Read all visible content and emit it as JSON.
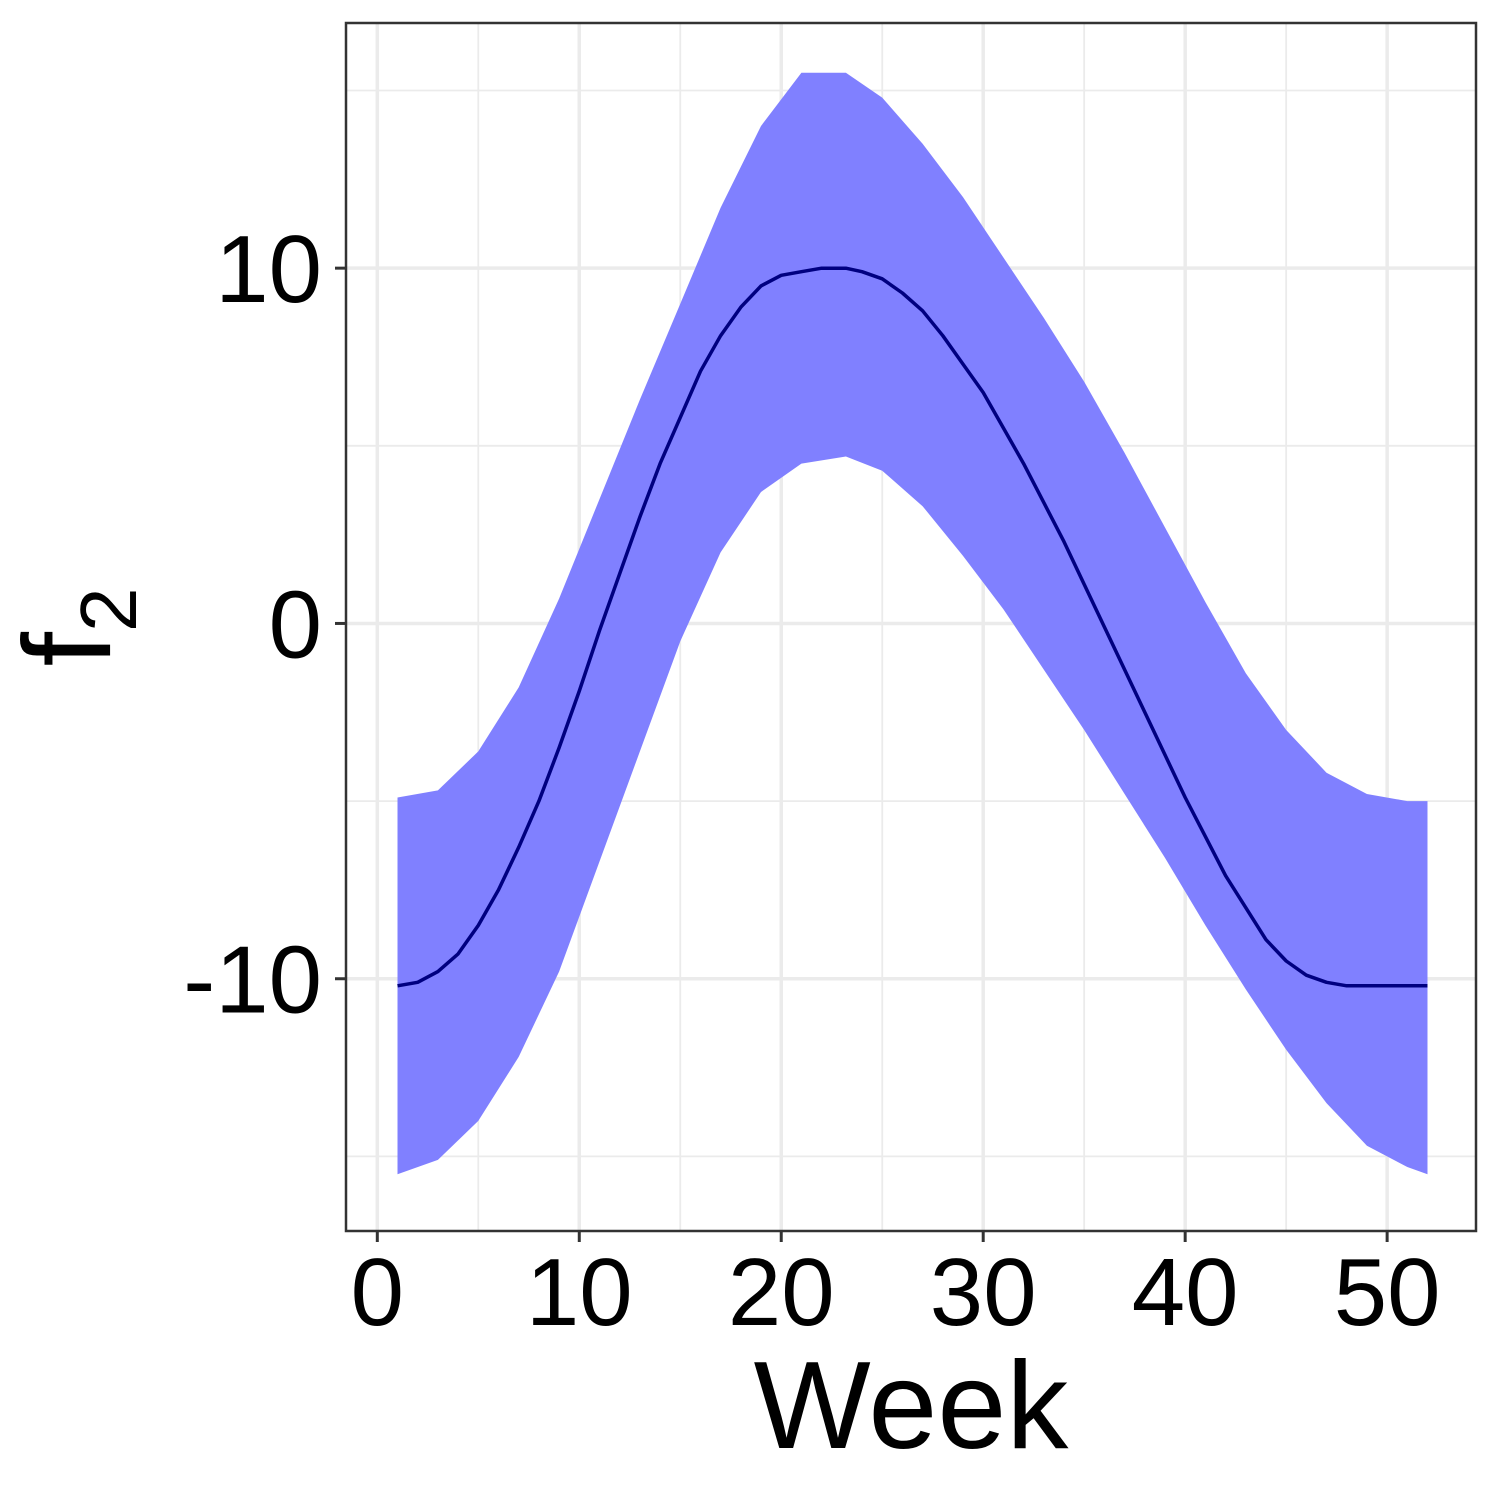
{
  "chart_data": {
    "type": "line",
    "x_ticks": [
      0,
      10,
      20,
      30,
      40,
      50
    ],
    "x_minor_ticks": [
      5,
      15,
      25,
      35,
      45
    ],
    "y_ticks": [
      -10,
      0,
      10
    ],
    "y_tick_labels": [
      "-10",
      "0",
      "10"
    ],
    "y_minor_ticks": [
      -15,
      -5,
      5,
      15
    ],
    "xlim": [
      -1.55,
      54.4
    ],
    "ylim": [
      -17.1,
      16.9
    ],
    "xlabel": "Week",
    "ylabel_base": "f",
    "ylabel_sub": "2",
    "grid": true,
    "series": [
      {
        "type": "ribbon",
        "color": "#8080ff",
        "x": [
          1,
          3,
          5,
          7,
          9,
          11,
          13,
          15,
          17,
          19,
          21,
          23.2,
          25,
          27,
          29,
          31,
          33,
          35,
          37,
          39,
          41,
          43,
          45,
          47,
          49,
          51,
          52
        ],
        "lower": [
          -15.5,
          -15.1,
          -14.0,
          -12.2,
          -9.8,
          -6.7,
          -3.6,
          -0.5,
          2.0,
          3.7,
          4.5,
          4.7,
          4.3,
          3.3,
          1.9,
          0.4,
          -1.3,
          -3.0,
          -4.8,
          -6.6,
          -8.5,
          -10.3,
          -12.0,
          -13.5,
          -14.7,
          -15.3,
          -15.5
        ],
        "upper": [
          -4.9,
          -4.7,
          -3.6,
          -1.8,
          0.7,
          3.5,
          6.3,
          9.0,
          11.7,
          14.0,
          15.5,
          15.5,
          14.8,
          13.5,
          12.0,
          10.3,
          8.6,
          6.8,
          4.8,
          2.7,
          0.6,
          -1.4,
          -3.0,
          -4.2,
          -4.8,
          -5.0,
          -5.0
        ]
      },
      {
        "type": "line",
        "color": "#000080",
        "x": [
          1,
          2,
          3,
          4,
          5,
          6,
          7,
          8,
          9,
          10,
          11,
          12,
          13,
          14,
          15,
          16,
          17,
          18,
          19,
          20,
          21,
          22,
          23,
          23.2,
          24,
          25,
          26,
          27,
          28,
          29,
          30,
          31,
          32,
          33,
          34,
          35,
          36,
          37,
          38,
          39,
          40,
          41,
          42,
          43,
          44,
          45,
          46,
          47,
          48,
          49,
          50,
          51,
          52
        ],
        "values": [
          -10.2,
          -10.1,
          -9.8,
          -9.3,
          -8.5,
          -7.5,
          -6.3,
          -5.0,
          -3.5,
          -1.9,
          -0.2,
          1.4,
          3.0,
          4.5,
          5.8,
          7.1,
          8.1,
          8.9,
          9.5,
          9.8,
          9.9,
          10.0,
          10.0,
          10.0,
          9.9,
          9.7,
          9.3,
          8.8,
          8.1,
          7.3,
          6.5,
          5.5,
          4.5,
          3.4,
          2.3,
          1.1,
          -0.1,
          -1.3,
          -2.5,
          -3.7,
          -4.9,
          -6.0,
          -7.1,
          -8.0,
          -8.9,
          -9.5,
          -9.9,
          -10.1,
          -10.2,
          -10.2,
          -10.2,
          -10.2,
          -10.2
        ]
      }
    ]
  }
}
